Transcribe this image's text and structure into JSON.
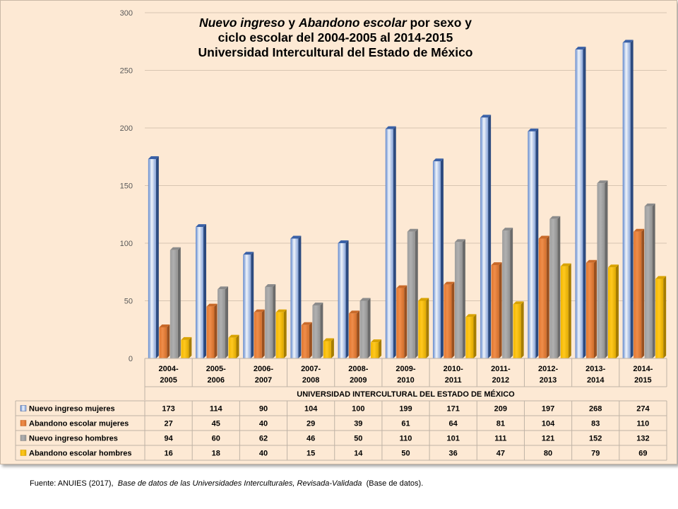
{
  "chart_data": {
    "type": "bar",
    "title_parts": [
      {
        "text": "Nuevo ingreso",
        "italic": true
      },
      {
        "text": " y ",
        "italic": false
      },
      {
        "text": "Abandono escolar",
        "italic": true
      },
      {
        "text": " por sexo y",
        "italic": false
      }
    ],
    "title_line2": "ciclo escolar del 2004-2005 al 2014-2015",
    "title_line3": "Universidad Intercultural del Estado de México",
    "categories": [
      [
        "2004-",
        "2005"
      ],
      [
        "2005-",
        "2006"
      ],
      [
        "2006-",
        "2007"
      ],
      [
        "2007-",
        "2008"
      ],
      [
        "2008-",
        "2009"
      ],
      [
        "2009-",
        "2010"
      ],
      [
        "2010-",
        "2011"
      ],
      [
        "2011-",
        "2012"
      ],
      [
        "2012-",
        "2013"
      ],
      [
        "2013-",
        "2014"
      ],
      [
        "2014-",
        "2015"
      ]
    ],
    "table_header": "UNIVERSIDAD INTERCULTURAL DEL ESTADO DE MÉXICO",
    "series": [
      {
        "name": "Nuevo ingreso mujeres",
        "color": "#4472c4",
        "values": [
          173,
          114,
          90,
          104,
          100,
          199,
          171,
          209,
          197,
          268,
          274
        ]
      },
      {
        "name": "Abandono escolar mujeres",
        "color": "#ed7d31",
        "values": [
          27,
          45,
          40,
          29,
          39,
          61,
          64,
          81,
          104,
          83,
          110
        ]
      },
      {
        "name": "Nuevo ingreso hombres",
        "color": "#a5a5a5",
        "values": [
          94,
          60,
          62,
          46,
          50,
          110,
          101,
          111,
          121,
          152,
          132
        ]
      },
      {
        "name": "Abandono escolar hombres",
        "color": "#ffc000",
        "values": [
          16,
          18,
          40,
          15,
          14,
          50,
          36,
          47,
          80,
          79,
          69
        ]
      }
    ],
    "ylim": [
      0,
      300
    ],
    "yticks": [
      "0",
      "50",
      "100",
      "150",
      "200",
      "250",
      "300"
    ],
    "grid": true,
    "legend": "data-table"
  },
  "source": {
    "prefix": "Fuente: ANUIES (2017),",
    "italic": "Base de datos de las Universidades Interculturales, Revisada-Validada",
    "suffix": "(Base de datos)."
  }
}
